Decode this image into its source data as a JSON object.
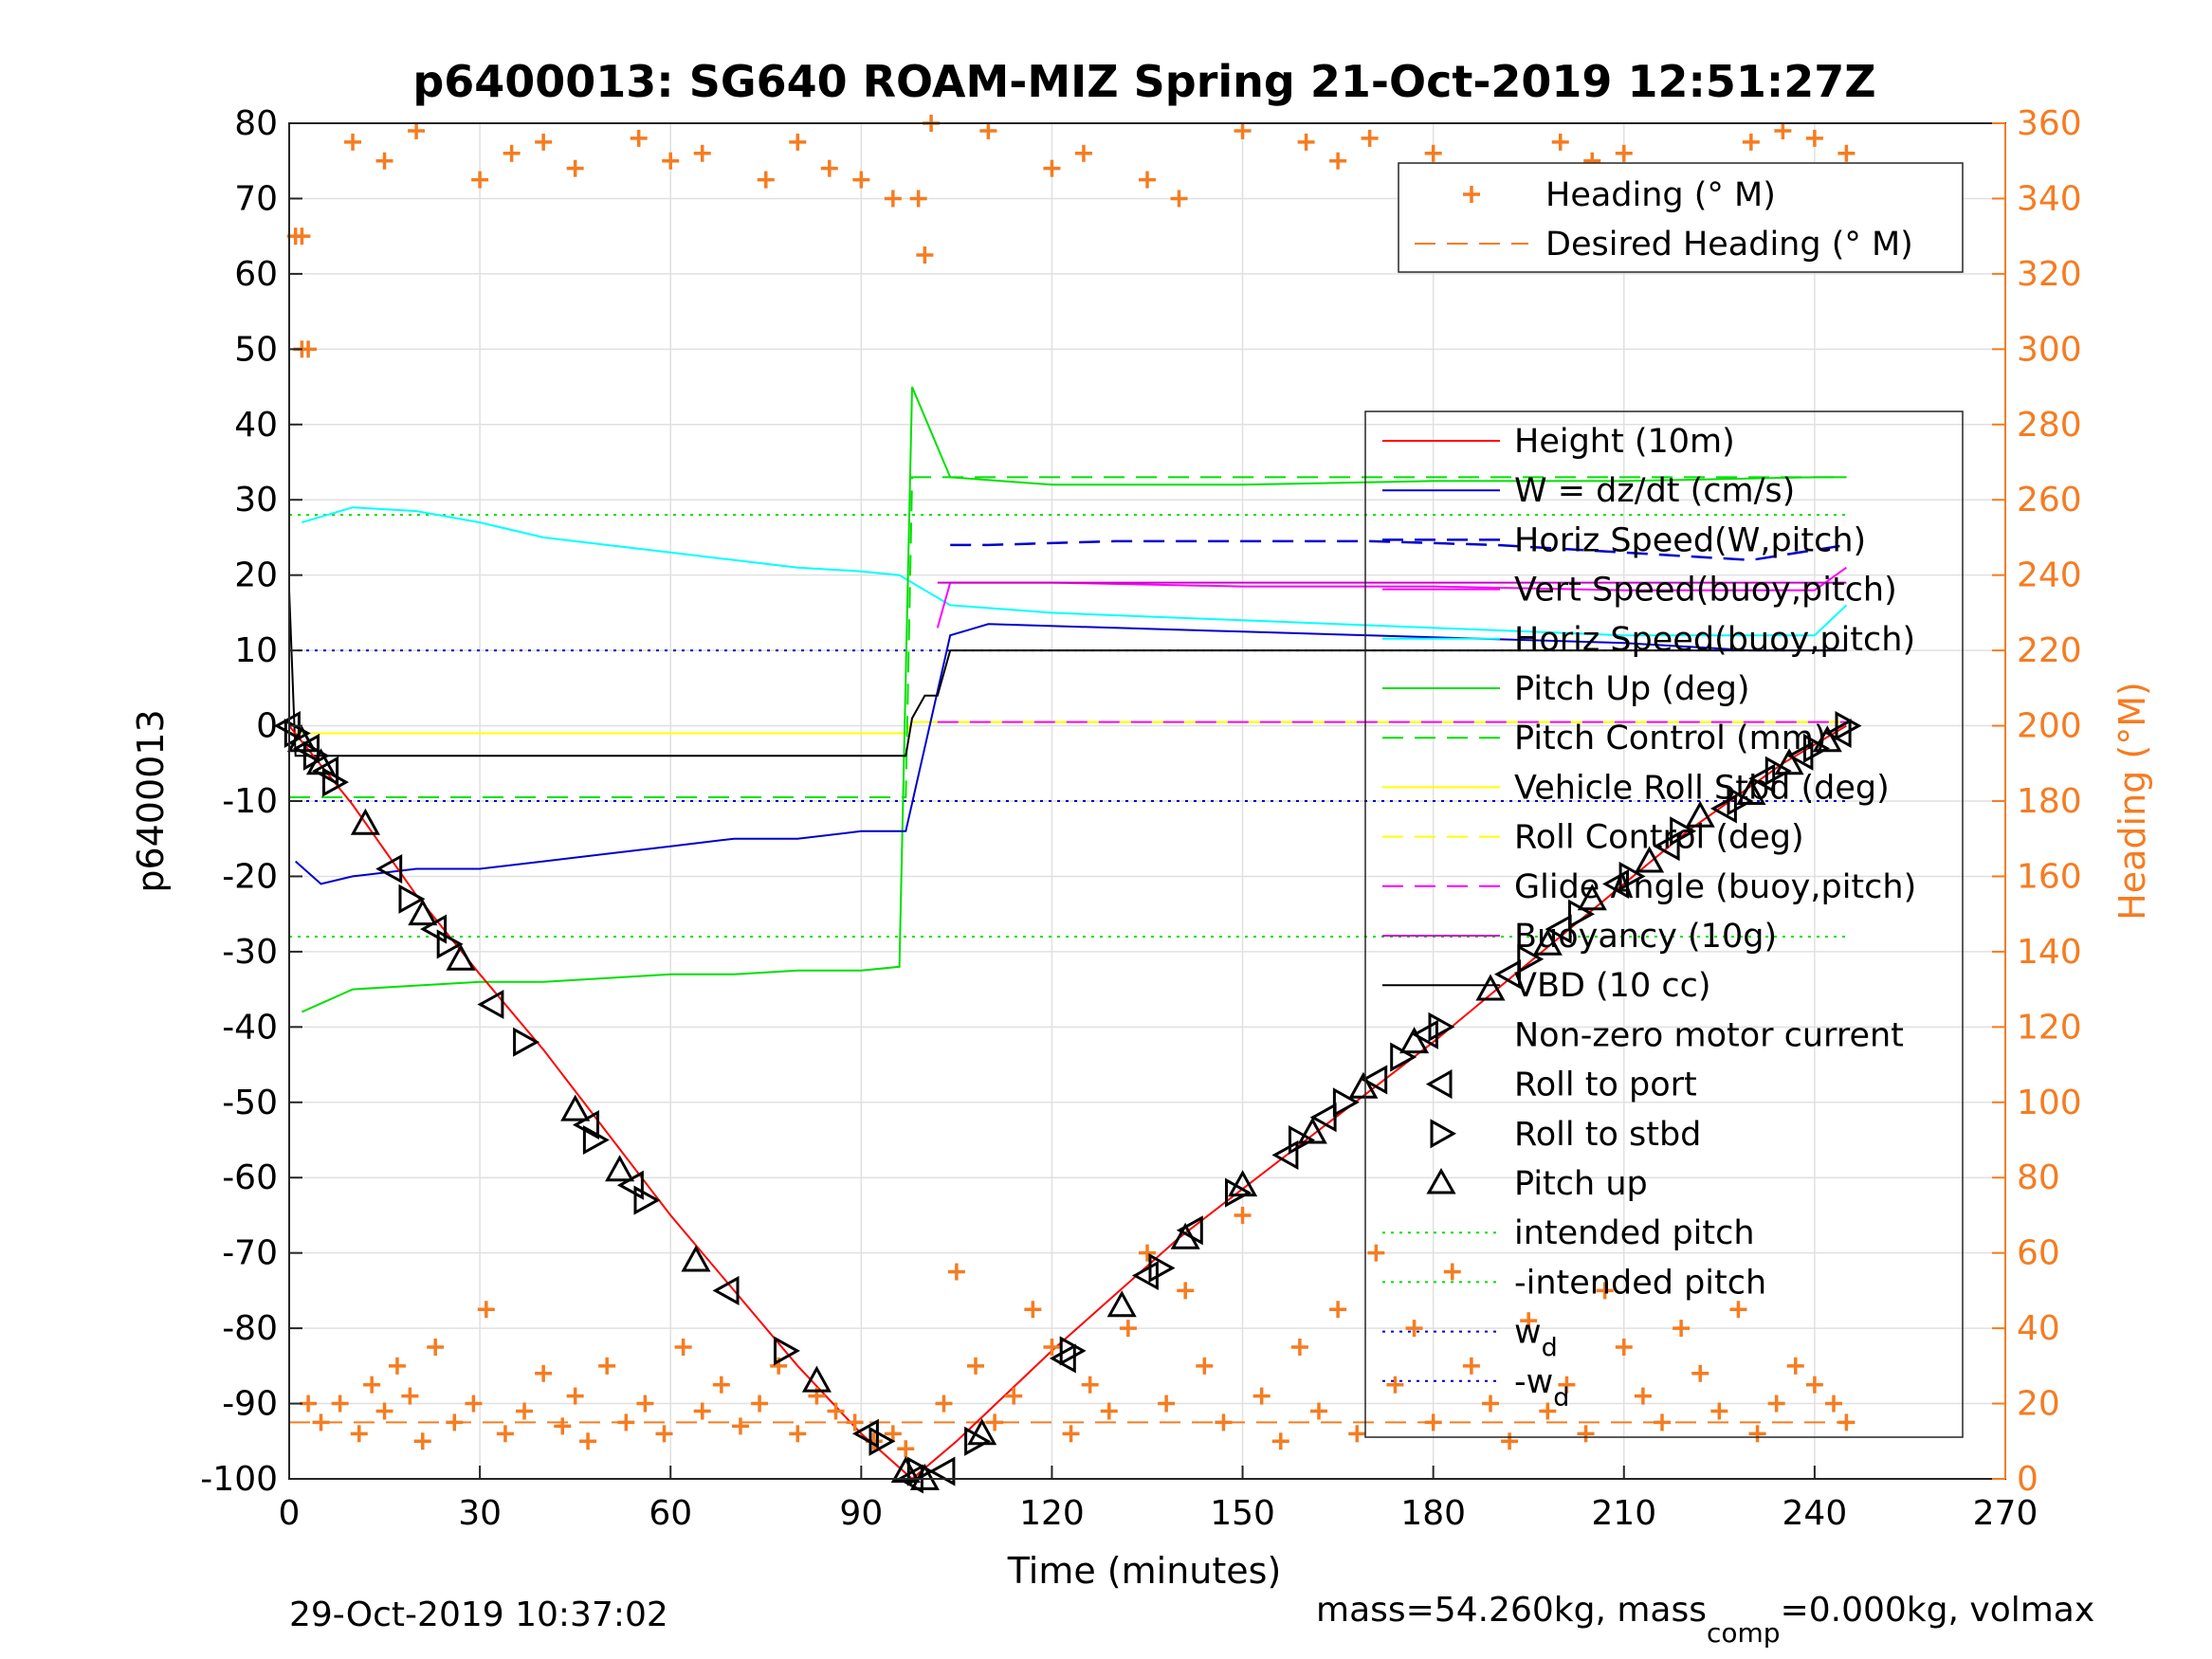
{
  "figure": {
    "title": "p6400013: SG640 ROAM-MIZ Spring 21-Oct-2019 12:51:27Z",
    "footer_left": "29-Oct-2019 10:37:02",
    "footer_right_1": "mass=54.260kg, mass",
    "footer_right_sub": "comp",
    "footer_right_2": "=0.000kg, volmax"
  },
  "colors": {
    "heading": "#f57c21",
    "height": "#ff0000",
    "w": "#0000cd",
    "horiz_w": "#0000cd",
    "vert_buoy": "#ff00ff",
    "horiz_buoy": "#00ffff",
    "pitch": "#00e000",
    "pitch_ctrl": "#00e000",
    "roll": "#ffff00",
    "roll_ctrl": "#ffff00",
    "glide": "#ff00ff",
    "buoyancy": "#cc00cc",
    "vbd": "#000000",
    "intended": "#00e000",
    "wd": "#0000cd"
  },
  "chart_data": {
    "type": "line",
    "title": "p6400013: SG640 ROAM-MIZ Spring 21-Oct-2019 12:51:27Z",
    "xlabel": "Time (minutes)",
    "ylabel": "p6400013",
    "y2label": "Heading (°M)",
    "xlim": [
      0,
      270
    ],
    "ylim": [
      -100,
      80
    ],
    "y2lim": [
      0,
      360
    ],
    "xticks": [
      "0",
      "30",
      "60",
      "90",
      "120",
      "150",
      "180",
      "210",
      "240",
      "270"
    ],
    "yticks": [
      "80",
      "70",
      "60",
      "50",
      "40",
      "30",
      "20",
      "10",
      "0",
      "-10",
      "-20",
      "-30",
      "-40",
      "-50",
      "-60",
      "-70",
      "-80",
      "-90",
      "-100"
    ],
    "y2ticks": [
      "360",
      "340",
      "320",
      "300",
      "280",
      "260",
      "240",
      "220",
      "200",
      "180",
      "160",
      "140",
      "120",
      "100",
      "80",
      "60",
      "40",
      "20",
      "0"
    ],
    "grid": true,
    "legend_top": [
      "Heading (° M)",
      "Desired Heading (° M)"
    ],
    "legend_main": [
      "Height (10m)",
      "W = dz/dt (cm/s)",
      "Horiz Speed(W,pitch)",
      "Vert Speed(buoy,pitch)",
      "Horiz Speed(buoy,pitch)",
      "Pitch Up (deg)",
      "Pitch Control (mm)",
      "Vehicle Roll Stbd (deg)",
      "Roll Control (deg)",
      "Glide Angle (buoy,pitch)",
      "Buoyancy (10g)",
      "VBD (10 cc)",
      "Non-zero motor current",
      "Roll to port",
      "Roll to stbd",
      "Pitch up",
      "intended pitch",
      "-intended pitch",
      "w",
      "-w"
    ],
    "legend_subscript": "d",
    "series": [
      {
        "name": "Height (10m)",
        "x": [
          0,
          10,
          20,
          30,
          40,
          50,
          60,
          70,
          80,
          90,
          98,
          105,
          120,
          140,
          160,
          180,
          200,
          220,
          235,
          245
        ],
        "y": [
          0,
          -10.5,
          -22.5,
          -33,
          -43,
          -54,
          -65,
          -75,
          -85,
          -94,
          -100,
          -95,
          -83,
          -68,
          -55,
          -42,
          -28,
          -14,
          -5,
          0
        ]
      },
      {
        "name": "W = dz/dt (cm/s)",
        "x": [
          1,
          5,
          10,
          20,
          30,
          40,
          50,
          60,
          70,
          80,
          90,
          97,
          104,
          110,
          130,
          150,
          170,
          190,
          210,
          230,
          245
        ],
        "y": [
          -18,
          -21,
          -20,
          -19,
          -19,
          -18,
          -17,
          -16,
          -15,
          -15,
          -14,
          -14,
          12,
          13.5,
          13,
          12.5,
          12,
          11.5,
          11,
          10,
          10
        ]
      },
      {
        "name": "Horiz Speed(W,pitch)",
        "x": [
          104,
          110,
          130,
          150,
          170,
          190,
          210,
          230,
          245
        ],
        "y": [
          24,
          24,
          24.5,
          24.5,
          24.5,
          24,
          23,
          22,
          24
        ]
      },
      {
        "name": "Vert Speed(buoy,pitch)",
        "x": [
          102,
          104,
          120,
          150,
          180,
          210,
          240,
          245
        ],
        "y": [
          13,
          19,
          19,
          18.5,
          18.5,
          18,
          18,
          21
        ]
      },
      {
        "name": "Horiz Speed(buoy,pitch)",
        "x": [
          2,
          10,
          20,
          30,
          40,
          50,
          60,
          70,
          80,
          90,
          96,
          104,
          120,
          150,
          180,
          210,
          240,
          245
        ],
        "y": [
          27,
          29,
          28.5,
          27,
          25,
          24,
          23,
          22,
          21,
          20.5,
          20,
          16,
          15,
          14,
          13,
          12,
          12,
          16
        ]
      },
      {
        "name": "Pitch Up (deg)",
        "x": [
          2,
          10,
          20,
          30,
          40,
          50,
          60,
          70,
          80,
          90,
          96,
          98,
          104,
          120,
          150,
          180,
          210,
          240,
          245
        ],
        "y": [
          -38,
          -35,
          -34.5,
          -34,
          -34,
          -33.5,
          -33,
          -33,
          -32.5,
          -32.5,
          -32,
          45,
          33,
          32,
          32,
          32.5,
          32.5,
          33,
          33
        ]
      },
      {
        "name": "Pitch Control (mm)",
        "x": [
          0,
          97,
          98,
          245
        ],
        "y": [
          -9.5,
          -9.5,
          33,
          33
        ]
      },
      {
        "name": "Vehicle Roll Stbd (deg)",
        "x": [
          0,
          50,
          97,
          98,
          150,
          200,
          245
        ],
        "y": [
          -1,
          -1,
          -1,
          0.5,
          0.5,
          0.5,
          0.5
        ]
      },
      {
        "name": "Roll Control (deg)",
        "x": [
          0,
          97,
          98,
          245
        ],
        "y": [
          -1,
          -1,
          0.5,
          0.5
        ]
      },
      {
        "name": "Glide Angle (buoy,pitch)",
        "x": [
          102,
          245
        ],
        "y": [
          0.5,
          0.5
        ]
      },
      {
        "name": "Buoyancy (10g)",
        "x": [
          102,
          245
        ],
        "y": [
          19,
          19
        ]
      },
      {
        "name": "VBD (10 cc)",
        "x": [
          0,
          1,
          97,
          98,
          100,
          102,
          104,
          130,
          245
        ],
        "y": [
          18,
          -4,
          -4,
          1,
          4,
          4,
          10,
          10,
          10
        ]
      },
      {
        "name": "intended pitch",
        "x": [
          0,
          245
        ],
        "y": [
          28,
          28
        ]
      },
      {
        "name": "-intended pitch",
        "x": [
          0,
          245
        ],
        "y": [
          -28,
          -28
        ]
      },
      {
        "name": "w",
        "x": [
          0,
          245
        ],
        "y": [
          10,
          10
        ]
      },
      {
        "name": "-w",
        "x": [
          0,
          245
        ],
        "y": [
          -10,
          -10
        ]
      },
      {
        "name": "Desired Heading (° M)",
        "axis": "y2",
        "x": [
          0,
          245
        ],
        "y": [
          15,
          15
        ]
      }
    ],
    "heading_series": {
      "name": "Heading (° M)",
      "axis": "y2",
      "x": [
        1,
        2,
        3,
        5,
        8,
        11,
        13,
        15,
        17,
        19,
        21,
        23,
        26,
        29,
        31,
        34,
        37,
        40,
        43,
        45,
        47,
        50,
        53,
        56,
        59,
        62,
        65,
        68,
        71,
        74,
        77,
        80,
        83,
        86,
        89,
        92,
        95,
        97,
        99,
        101,
        103,
        105,
        108,
        111,
        114,
        117,
        120,
        123,
        126,
        129,
        132,
        135,
        138,
        141,
        144,
        147,
        150,
        153,
        156,
        159,
        162,
        165,
        168,
        171,
        174,
        177,
        180,
        183,
        186,
        189,
        192,
        195,
        198,
        201,
        204,
        207,
        210,
        213,
        216,
        219,
        222,
        225,
        228,
        231,
        234,
        237,
        240,
        243,
        245
      ],
      "y": [
        330,
        300,
        20,
        15,
        20,
        12,
        25,
        18,
        30,
        22,
        10,
        35,
        15,
        20,
        45,
        12,
        18,
        28,
        14,
        22,
        10,
        30,
        15,
        20,
        12,
        35,
        18,
        25,
        14,
        20,
        30,
        12,
        22,
        18,
        15,
        10,
        12,
        8,
        340,
        360,
        20,
        55,
        30,
        15,
        22,
        45,
        35,
        12,
        25,
        18,
        40,
        60,
        20,
        50,
        30,
        15,
        70,
        22,
        10,
        35,
        18,
        45,
        12,
        60,
        25,
        40,
        15,
        55,
        30,
        20,
        10,
        42,
        18,
        25,
        12,
        50,
        35,
        22,
        15,
        40,
        28,
        18,
        45,
        12,
        20,
        30,
        25,
        20,
        15
      ]
    },
    "heading_top_cluster": {
      "x": [
        2,
        3,
        10,
        15,
        20,
        30,
        35,
        40,
        45,
        55,
        60,
        65,
        75,
        80,
        85,
        90,
        95,
        100,
        110,
        120,
        125,
        135,
        140,
        150,
        160,
        165,
        170,
        180,
        190,
        200,
        205,
        210,
        220,
        230,
        235,
        240,
        245
      ],
      "y": [
        330,
        300,
        355,
        350,
        358,
        345,
        352,
        355,
        348,
        356,
        350,
        352,
        345,
        355,
        348,
        345,
        340,
        325,
        358,
        348,
        352,
        345,
        340,
        358,
        355,
        350,
        356,
        352,
        345,
        355,
        350,
        352,
        345,
        355,
        358,
        356,
        352
      ]
    },
    "markers": {
      "x": [
        0,
        1,
        2,
        3,
        4,
        5,
        6,
        7,
        12,
        16,
        19,
        21,
        23,
        25,
        27,
        32,
        37,
        45,
        47,
        48,
        52,
        54,
        56,
        64,
        69,
        78,
        83,
        91,
        93,
        97,
        98,
        99,
        100,
        103,
        108,
        109,
        122,
        123,
        131,
        135,
        137,
        141,
        142,
        149,
        150,
        157,
        159,
        161,
        163,
        166,
        169,
        171,
        175,
        177,
        179,
        181,
        189,
        192,
        195,
        198,
        200,
        203,
        205,
        209,
        211,
        214,
        217,
        219,
        222,
        226,
        228,
        230,
        232,
        234,
        236,
        238,
        240,
        242,
        244,
        245
      ],
      "y": [
        0,
        -1,
        -2,
        -3,
        -4,
        -5,
        -6,
        -7.5,
        -13,
        -19,
        -23,
        -25,
        -27,
        -29,
        -31,
        -37,
        -42,
        -51,
        -53,
        -55,
        -59,
        -61,
        -63,
        -71,
        -75,
        -83,
        -87,
        -94,
        -95,
        -99,
        -100,
        -99,
        -100,
        -99,
        -95,
        -94,
        -84,
        -83,
        -77,
        -73,
        -72,
        -68,
        -67,
        -62,
        -61,
        -57,
        -55,
        -54,
        -52,
        -50,
        -48,
        -47,
        -44,
        -42,
        -41,
        -40,
        -35,
        -33,
        -31,
        -29,
        -27,
        -25,
        -23,
        -21,
        -20,
        -18,
        -16,
        -14,
        -12,
        -11,
        -10,
        -9,
        -7,
        -6,
        -5,
        -4,
        -3,
        -2,
        -1,
        0
      ]
    }
  }
}
